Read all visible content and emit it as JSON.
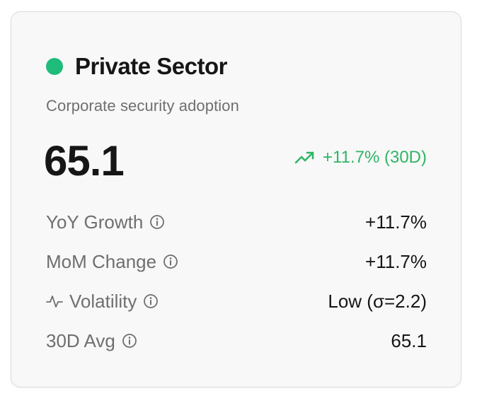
{
  "card": {
    "title": "Private Sector",
    "subtitle": "Corporate security adoption",
    "value": "65.1",
    "change": {
      "text": "+11.7% (30D)",
      "icon": "trending-up-icon"
    },
    "metrics": [
      {
        "label": "YoY Growth",
        "value": "+11.7%",
        "info_icon": "info-icon"
      },
      {
        "label": "MoM Change",
        "value": "+11.7%",
        "info_icon": "info-icon"
      },
      {
        "label": "Volatility",
        "value": "Low (σ=2.2)",
        "lead_icon": "activity-icon",
        "info_icon": "info-icon"
      },
      {
        "label": "30D Avg",
        "value": "65.1",
        "info_icon": "info-icon"
      }
    ]
  },
  "colors": {
    "accent_green": "#1fbc7c",
    "positive_text": "#2fb565",
    "muted_text": "#6f6f6f",
    "primary_text": "#161616"
  }
}
